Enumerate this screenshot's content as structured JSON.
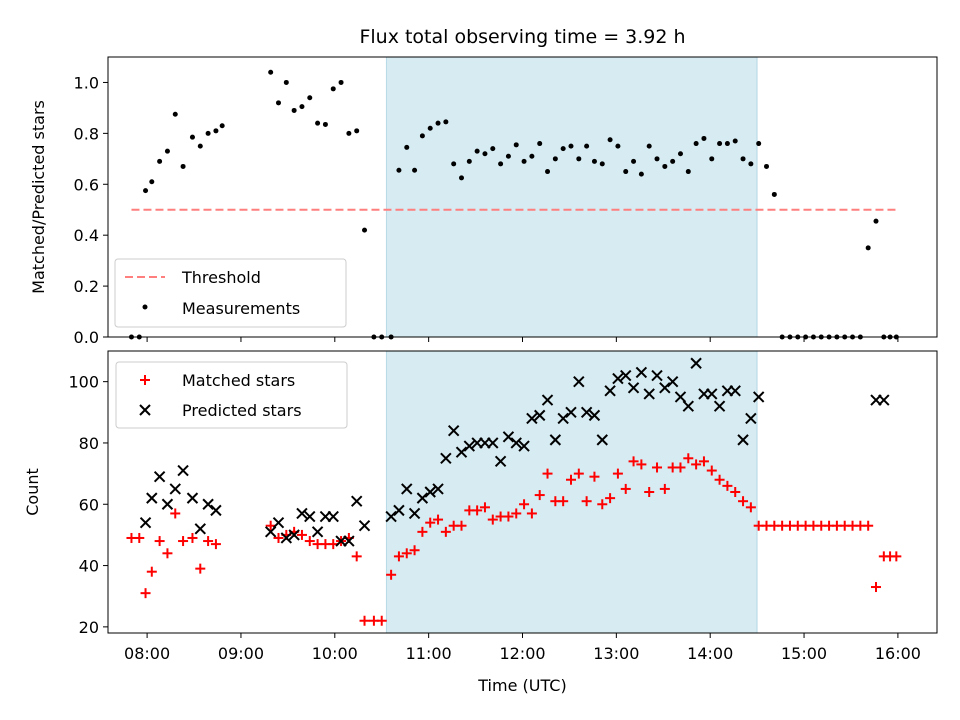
{
  "chart_data": [
    {
      "type": "scatter",
      "title": "Flux total observing time = 3.92 h",
      "ylabel": "Matched/Predicted stars",
      "xlabel": "",
      "xlim": [
        "07:35",
        "16:25"
      ],
      "ylim": [
        0,
        1.1
      ],
      "yticks": [
        "0.0",
        "0.2",
        "0.4",
        "0.6",
        "0.8",
        "1.0"
      ],
      "shaded_interval": [
        "10:33",
        "14:30"
      ],
      "shade_color": "#add8e6",
      "threshold": {
        "name": "Threshold",
        "value": 0.5,
        "x_start": "07:50",
        "x_end": "16:00",
        "color": "#ff7f7f"
      },
      "legend": {
        "position": "lower-left",
        "entries": [
          "Threshold",
          "Measurements"
        ]
      },
      "series": [
        {
          "name": "Measurements",
          "color": "#000000",
          "marker": "dot",
          "x": [
            "07:50",
            "07:55",
            "07:59",
            "08:03",
            "08:08",
            "08:13",
            "08:18",
            "08:23",
            "08:29",
            "08:34",
            "08:39",
            "08:44",
            "08:48",
            "09:19",
            "09:24",
            "09:29",
            "09:34",
            "09:39",
            "09:44",
            "09:49",
            "09:54",
            "09:59",
            "10:04",
            "10:09",
            "10:14",
            "10:19",
            "10:25",
            "10:30",
            "10:36",
            "10:41",
            "10:46",
            "10:51",
            "10:56",
            "11:01",
            "11:06",
            "11:11",
            "11:16",
            "11:21",
            "11:26",
            "11:31",
            "11:36",
            "11:41",
            "11:46",
            "11:51",
            "11:56",
            "12:01",
            "12:06",
            "12:11",
            "12:16",
            "12:21",
            "12:26",
            "12:31",
            "12:36",
            "12:41",
            "12:46",
            "12:51",
            "12:56",
            "13:01",
            "13:06",
            "13:11",
            "13:16",
            "13:21",
            "13:26",
            "13:31",
            "13:36",
            "13:41",
            "13:46",
            "13:51",
            "13:56",
            "14:01",
            "14:06",
            "14:11",
            "14:16",
            "14:21",
            "14:26",
            "14:31",
            "14:36",
            "14:41",
            "14:46",
            "14:51",
            "14:56",
            "15:01",
            "15:06",
            "15:11",
            "15:16",
            "15:21",
            "15:26",
            "15:31",
            "15:36",
            "15:41",
            "15:46",
            "15:51",
            "15:55",
            "15:59"
          ],
          "y": [
            0,
            0,
            0.575,
            0.61,
            0.69,
            0.73,
            0.875,
            0.67,
            0.785,
            0.75,
            0.8,
            0.81,
            0.83,
            1.04,
            0.92,
            1.0,
            0.89,
            0.905,
            0.94,
            0.84,
            0.835,
            0.975,
            1.0,
            0.8,
            0.81,
            0.42,
            0,
            0,
            0,
            0.655,
            0.745,
            0.655,
            0.79,
            0.82,
            0.84,
            0.845,
            0.68,
            0.625,
            0.69,
            0.73,
            0.72,
            0.74,
            0.68,
            0.71,
            0.755,
            0.69,
            0.71,
            0.76,
            0.65,
            0.7,
            0.74,
            0.75,
            0.7,
            0.75,
            0.69,
            0.68,
            0.775,
            0.75,
            0.65,
            0.69,
            0.64,
            0.75,
            0.7,
            0.67,
            0.69,
            0.72,
            0.65,
            0.76,
            0.78,
            0.7,
            0.76,
            0.76,
            0.77,
            0.7,
            0.68,
            0.76,
            0.67,
            0.56,
            0,
            0,
            0,
            0,
            0,
            0,
            0,
            0,
            0,
            0,
            0,
            0.35,
            0.455,
            0,
            0,
            0
          ]
        }
      ]
    },
    {
      "type": "scatter",
      "title": "",
      "xlabel": "Time (UTC)",
      "ylabel": "Count",
      "xlim": [
        "07:35",
        "16:25"
      ],
      "ylim": [
        18,
        110
      ],
      "xticks": [
        "08:00",
        "09:00",
        "10:00",
        "11:00",
        "12:00",
        "13:00",
        "14:00",
        "15:00",
        "16:00"
      ],
      "yticks": [
        "20",
        "40",
        "60",
        "80",
        "100"
      ],
      "shaded_interval": [
        "10:33",
        "14:30"
      ],
      "legend": {
        "position": "upper-left",
        "entries": [
          "Matched stars",
          "Predicted stars"
        ]
      },
      "series": [
        {
          "name": "Matched stars",
          "color": "#ff0000",
          "marker": "plus",
          "x": [
            "07:50",
            "07:55",
            "07:59",
            "08:03",
            "08:08",
            "08:13",
            "08:18",
            "08:23",
            "08:29",
            "08:34",
            "08:39",
            "08:44",
            "09:19",
            "09:24",
            "09:29",
            "09:34",
            "09:39",
            "09:44",
            "09:49",
            "09:54",
            "09:59",
            "10:04",
            "10:09",
            "10:14",
            "10:19",
            "10:25",
            "10:30",
            "10:36",
            "10:41",
            "10:46",
            "10:51",
            "10:56",
            "11:01",
            "11:06",
            "11:11",
            "11:16",
            "11:21",
            "11:26",
            "11:31",
            "11:36",
            "11:41",
            "11:46",
            "11:51",
            "11:56",
            "12:01",
            "12:06",
            "12:11",
            "12:16",
            "12:21",
            "12:26",
            "12:31",
            "12:36",
            "12:41",
            "12:46",
            "12:51",
            "12:56",
            "13:01",
            "13:06",
            "13:11",
            "13:16",
            "13:21",
            "13:26",
            "13:31",
            "13:36",
            "13:41",
            "13:46",
            "13:51",
            "13:56",
            "14:01",
            "14:06",
            "14:11",
            "14:16",
            "14:21",
            "14:26",
            "14:31",
            "14:36",
            "14:41",
            "14:46",
            "14:51",
            "14:56",
            "15:01",
            "15:06",
            "15:11",
            "15:16",
            "15:21",
            "15:26",
            "15:31",
            "15:36",
            "15:41",
            "15:46",
            "15:51",
            "15:55",
            "15:59"
          ],
          "y": [
            49,
            49,
            31,
            38,
            48,
            44,
            57,
            48,
            49,
            39,
            48,
            47,
            53,
            49,
            50,
            51,
            50,
            48,
            47,
            47,
            47,
            48,
            49,
            43,
            22,
            22,
            22,
            37,
            43,
            44,
            45,
            51,
            54,
            55,
            51,
            53,
            53,
            58,
            58,
            59,
            55,
            56,
            56,
            57,
            60,
            57,
            63,
            70,
            61,
            61,
            68,
            70,
            61,
            69,
            60,
            62,
            70,
            65,
            74,
            73,
            64,
            72,
            65,
            72,
            72,
            75,
            73,
            74,
            71,
            68,
            66,
            64,
            61,
            59,
            53,
            53,
            53,
            53,
            53,
            53,
            53,
            53,
            53,
            53,
            53,
            53,
            53,
            53,
            53,
            33,
            43,
            43,
            43
          ]
        },
        {
          "name": "Predicted stars",
          "color": "#000000",
          "marker": "x",
          "x": [
            "07:59",
            "08:03",
            "08:08",
            "08:13",
            "08:18",
            "08:23",
            "08:29",
            "08:34",
            "08:39",
            "08:44",
            "09:19",
            "09:24",
            "09:29",
            "09:34",
            "09:39",
            "09:44",
            "09:49",
            "09:54",
            "09:59",
            "10:04",
            "10:09",
            "10:14",
            "10:19",
            "10:36",
            "10:41",
            "10:46",
            "10:51",
            "10:56",
            "11:01",
            "11:06",
            "11:11",
            "11:16",
            "11:21",
            "11:26",
            "11:31",
            "11:36",
            "11:41",
            "11:46",
            "11:51",
            "11:56",
            "12:01",
            "12:06",
            "12:11",
            "12:16",
            "12:21",
            "12:26",
            "12:31",
            "12:36",
            "12:41",
            "12:46",
            "12:51",
            "12:56",
            "13:01",
            "13:06",
            "13:11",
            "13:16",
            "13:21",
            "13:26",
            "13:31",
            "13:36",
            "13:41",
            "13:46",
            "13:51",
            "13:56",
            "14:01",
            "14:06",
            "14:11",
            "14:16",
            "14:21",
            "14:26",
            "14:31",
            "15:46",
            "15:51"
          ],
          "y": [
            54,
            62,
            69,
            60,
            65,
            71,
            62,
            52,
            60,
            58,
            51,
            54,
            49,
            50,
            57,
            56,
            51,
            56,
            56,
            48,
            48,
            61,
            53,
            56,
            58,
            65,
            57,
            62,
            64,
            65,
            75,
            84,
            77,
            79,
            80,
            80,
            80,
            74,
            82,
            80,
            79,
            88,
            89,
            94,
            81,
            88,
            90,
            100,
            90,
            89,
            81,
            97,
            101,
            102,
            98,
            103,
            96,
            102,
            98,
            100,
            95,
            92,
            106,
            96,
            96,
            92,
            97,
            97,
            81,
            88,
            95,
            94,
            94
          ]
        }
      ]
    }
  ]
}
